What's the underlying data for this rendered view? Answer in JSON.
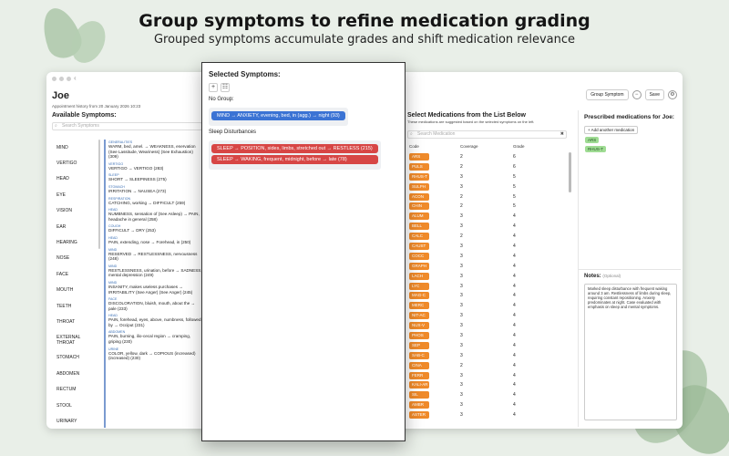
{
  "promo": {
    "headline": "Group symptoms to refine medication grading",
    "subline": "Grouped symptoms accumulate grades and shift medication relevance"
  },
  "window": {
    "patient_name": "Joe",
    "patient_sub": "Appointment history from 20 January 2026 10:23",
    "group_symptom_label": "Group Symptom",
    "save_label": "Save"
  },
  "available": {
    "title": "Available Symptoms:",
    "search_placeholder": "Search Symptoms",
    "categories": [
      "MIND",
      "VERTIGO",
      "HEAD",
      "EYE",
      "VISION",
      "EAR",
      "HEARING",
      "NOSE",
      "FACE",
      "MOUTH",
      "TEETH",
      "THROAT",
      "EXTERNAL THROAT",
      "STOMACH",
      "ABDOMEN",
      "RECTUM",
      "STOOL",
      "URINARY"
    ],
    "symptoms": [
      {
        "cat": "GENERALITIES",
        "text": "WARM, bed, amel. → WEAKNESS, enervation (See Lassitude, Weariness) (See Exhaustion) (309)"
      },
      {
        "cat": "VERTIGO",
        "text": "VERTIGO → VERTIGO (283)"
      },
      {
        "cat": "SLEEP",
        "text": "SHORT → SLEEPINESS (275)"
      },
      {
        "cat": "STOMACH",
        "text": "IRRITATION → NAUSEA (273)"
      },
      {
        "cat": "RESPIRATION",
        "text": "CATCHING, working → DIFFICULT (259)"
      },
      {
        "cat": "HEAD",
        "text": "NUMBNESS, sensation of (See Asleep) → PAIN, headache in general (258)"
      },
      {
        "cat": "COUGH",
        "text": "DIFFICULT → DRY (253)"
      },
      {
        "cat": "HEAD",
        "text": "PAIN, extending, nose → Forehead, in (250)"
      },
      {
        "cat": "MIND",
        "text": "RESERVED → RESTLESSNESS, nervousness (248)"
      },
      {
        "cat": "MIND",
        "text": "RESTLESSNESS, urination, before → SADNESS, mental depression (249)"
      },
      {
        "cat": "MIND",
        "text": "INSANITY, makes useless purchases → IRRITABILITY (See Anger) (See Anger) (245)"
      },
      {
        "cat": "FACE",
        "text": "DISCOLORATION, bluish, mouth, about the → pale (233)"
      },
      {
        "cat": "HEAD",
        "text": "PAIN, forehead, eyes, above, numbness, followed by → Occiput (231)"
      },
      {
        "cat": "ABDOMEN",
        "text": "PAIN, burning, ilio-cecal region → cramping, griping (230)"
      },
      {
        "cat": "URINE",
        "text": "COLOR, yellow, dark → COPIOUS (increased) (increased) (230)"
      }
    ]
  },
  "popup": {
    "title": "Selected Symptoms:",
    "groups": [
      {
        "label": "No Group:",
        "pills": [
          "MIND → ANXIETY, evening, bed, in (agg.) → night (93)"
        ]
      },
      {
        "label": "Sleep Disturbances",
        "pills": [
          "SLEEP → POSITION, sides, limbs, stretched out → RESTLESS (215)",
          "SLEEP → WAKING, frequent, midnight, before → late (78)"
        ]
      }
    ]
  },
  "meds": {
    "title": "Select Medications from the List Below",
    "subtitle": "These medications are suggested based on the selected symptoms on the left.",
    "search_placeholder": "Search Medication",
    "columns": [
      "Code",
      "Coverage",
      "Grade"
    ],
    "rows": [
      [
        "ARS",
        "2",
        "6"
      ],
      [
        "PULS",
        "2",
        "6"
      ],
      [
        "RHUS-T",
        "3",
        "5"
      ],
      [
        "SULPH",
        "3",
        "5"
      ],
      [
        "ACON",
        "2",
        "5"
      ],
      [
        "CHIN",
        "2",
        "5"
      ],
      [
        "ALUM",
        "3",
        "4"
      ],
      [
        "BELL",
        "3",
        "4"
      ],
      [
        "CALC",
        "2",
        "4"
      ],
      [
        "CAUST",
        "3",
        "4"
      ],
      [
        "COCC",
        "3",
        "4"
      ],
      [
        "GRAPH",
        "3",
        "4"
      ],
      [
        "LACH",
        "3",
        "4"
      ],
      [
        "LYC",
        "3",
        "4"
      ],
      [
        "MAG-C",
        "3",
        "4"
      ],
      [
        "MERC",
        "3",
        "4"
      ],
      [
        "NIT-AC",
        "3",
        "4"
      ],
      [
        "NUX-V",
        "3",
        "4"
      ],
      [
        "PHOS",
        "3",
        "4"
      ],
      [
        "SEP",
        "3",
        "4"
      ],
      [
        "SAB-C",
        "3",
        "4"
      ],
      [
        "CINA",
        "2",
        "4"
      ],
      [
        "FERR",
        "3",
        "4"
      ],
      [
        "KALI-AR",
        "3",
        "4"
      ],
      [
        "SIL",
        "3",
        "4"
      ],
      [
        "AMBR",
        "3",
        "4"
      ],
      [
        "ASTER",
        "3",
        "4"
      ]
    ]
  },
  "prescribed": {
    "title": "Prescribed medications for Joe:",
    "add_label": "Add another medication",
    "items": [
      "ARS",
      "RHUS-T"
    ],
    "notes_title": "Notes:",
    "notes_optional": "(Optional)",
    "notes_text": "Marked sleep disturbance with frequent waking around 3 am. Restlessness of limbs during sleep, requiring constant repositioning. Anxiety predominates at night. Case evaluated with emphasis on sleep and mental symptoms."
  }
}
